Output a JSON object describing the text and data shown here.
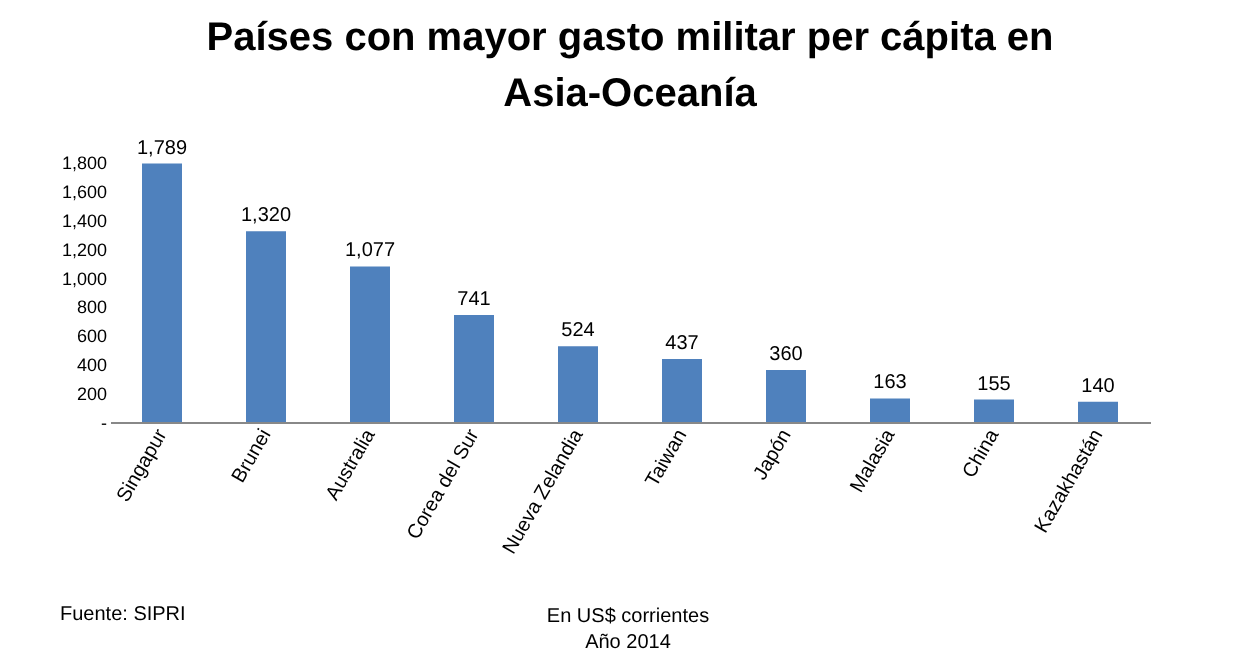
{
  "chart_data": {
    "type": "bar",
    "title": "Países con mayor gasto militar per cápita en Asia-Oceanía",
    "categories": [
      "Singapur",
      "Brunei",
      "Australia",
      "Corea del Sur",
      "Nueva Zelandia",
      "Taiwan",
      "Japón",
      "Malasia",
      "China",
      "Kazakhastán"
    ],
    "values": [
      1789,
      1320,
      1077,
      741,
      524,
      437,
      360,
      163,
      155,
      140
    ],
    "value_labels": [
      "1,789",
      "1,320",
      "1,077",
      "741",
      "524",
      "437",
      "360",
      "163",
      "155",
      "140"
    ],
    "color": "#4f81bd",
    "ylim": [
      0,
      1800
    ],
    "yticks": [
      {
        "value": 0,
        "label": "-"
      },
      {
        "value": 200,
        "label": "200"
      },
      {
        "value": 400,
        "label": "400"
      },
      {
        "value": 600,
        "label": "600"
      },
      {
        "value": 800,
        "label": "800"
      },
      {
        "value": 1000,
        "label": "1,000"
      },
      {
        "value": 1200,
        "label": "1,200"
      },
      {
        "value": 1400,
        "label": "1,400"
      },
      {
        "value": 1600,
        "label": "1,600"
      },
      {
        "value": 1800,
        "label": "1,800"
      }
    ],
    "grid": false,
    "annotations": [
      "Fuente: SIPRI",
      "En US$ corrientes",
      "Año 2014"
    ]
  }
}
